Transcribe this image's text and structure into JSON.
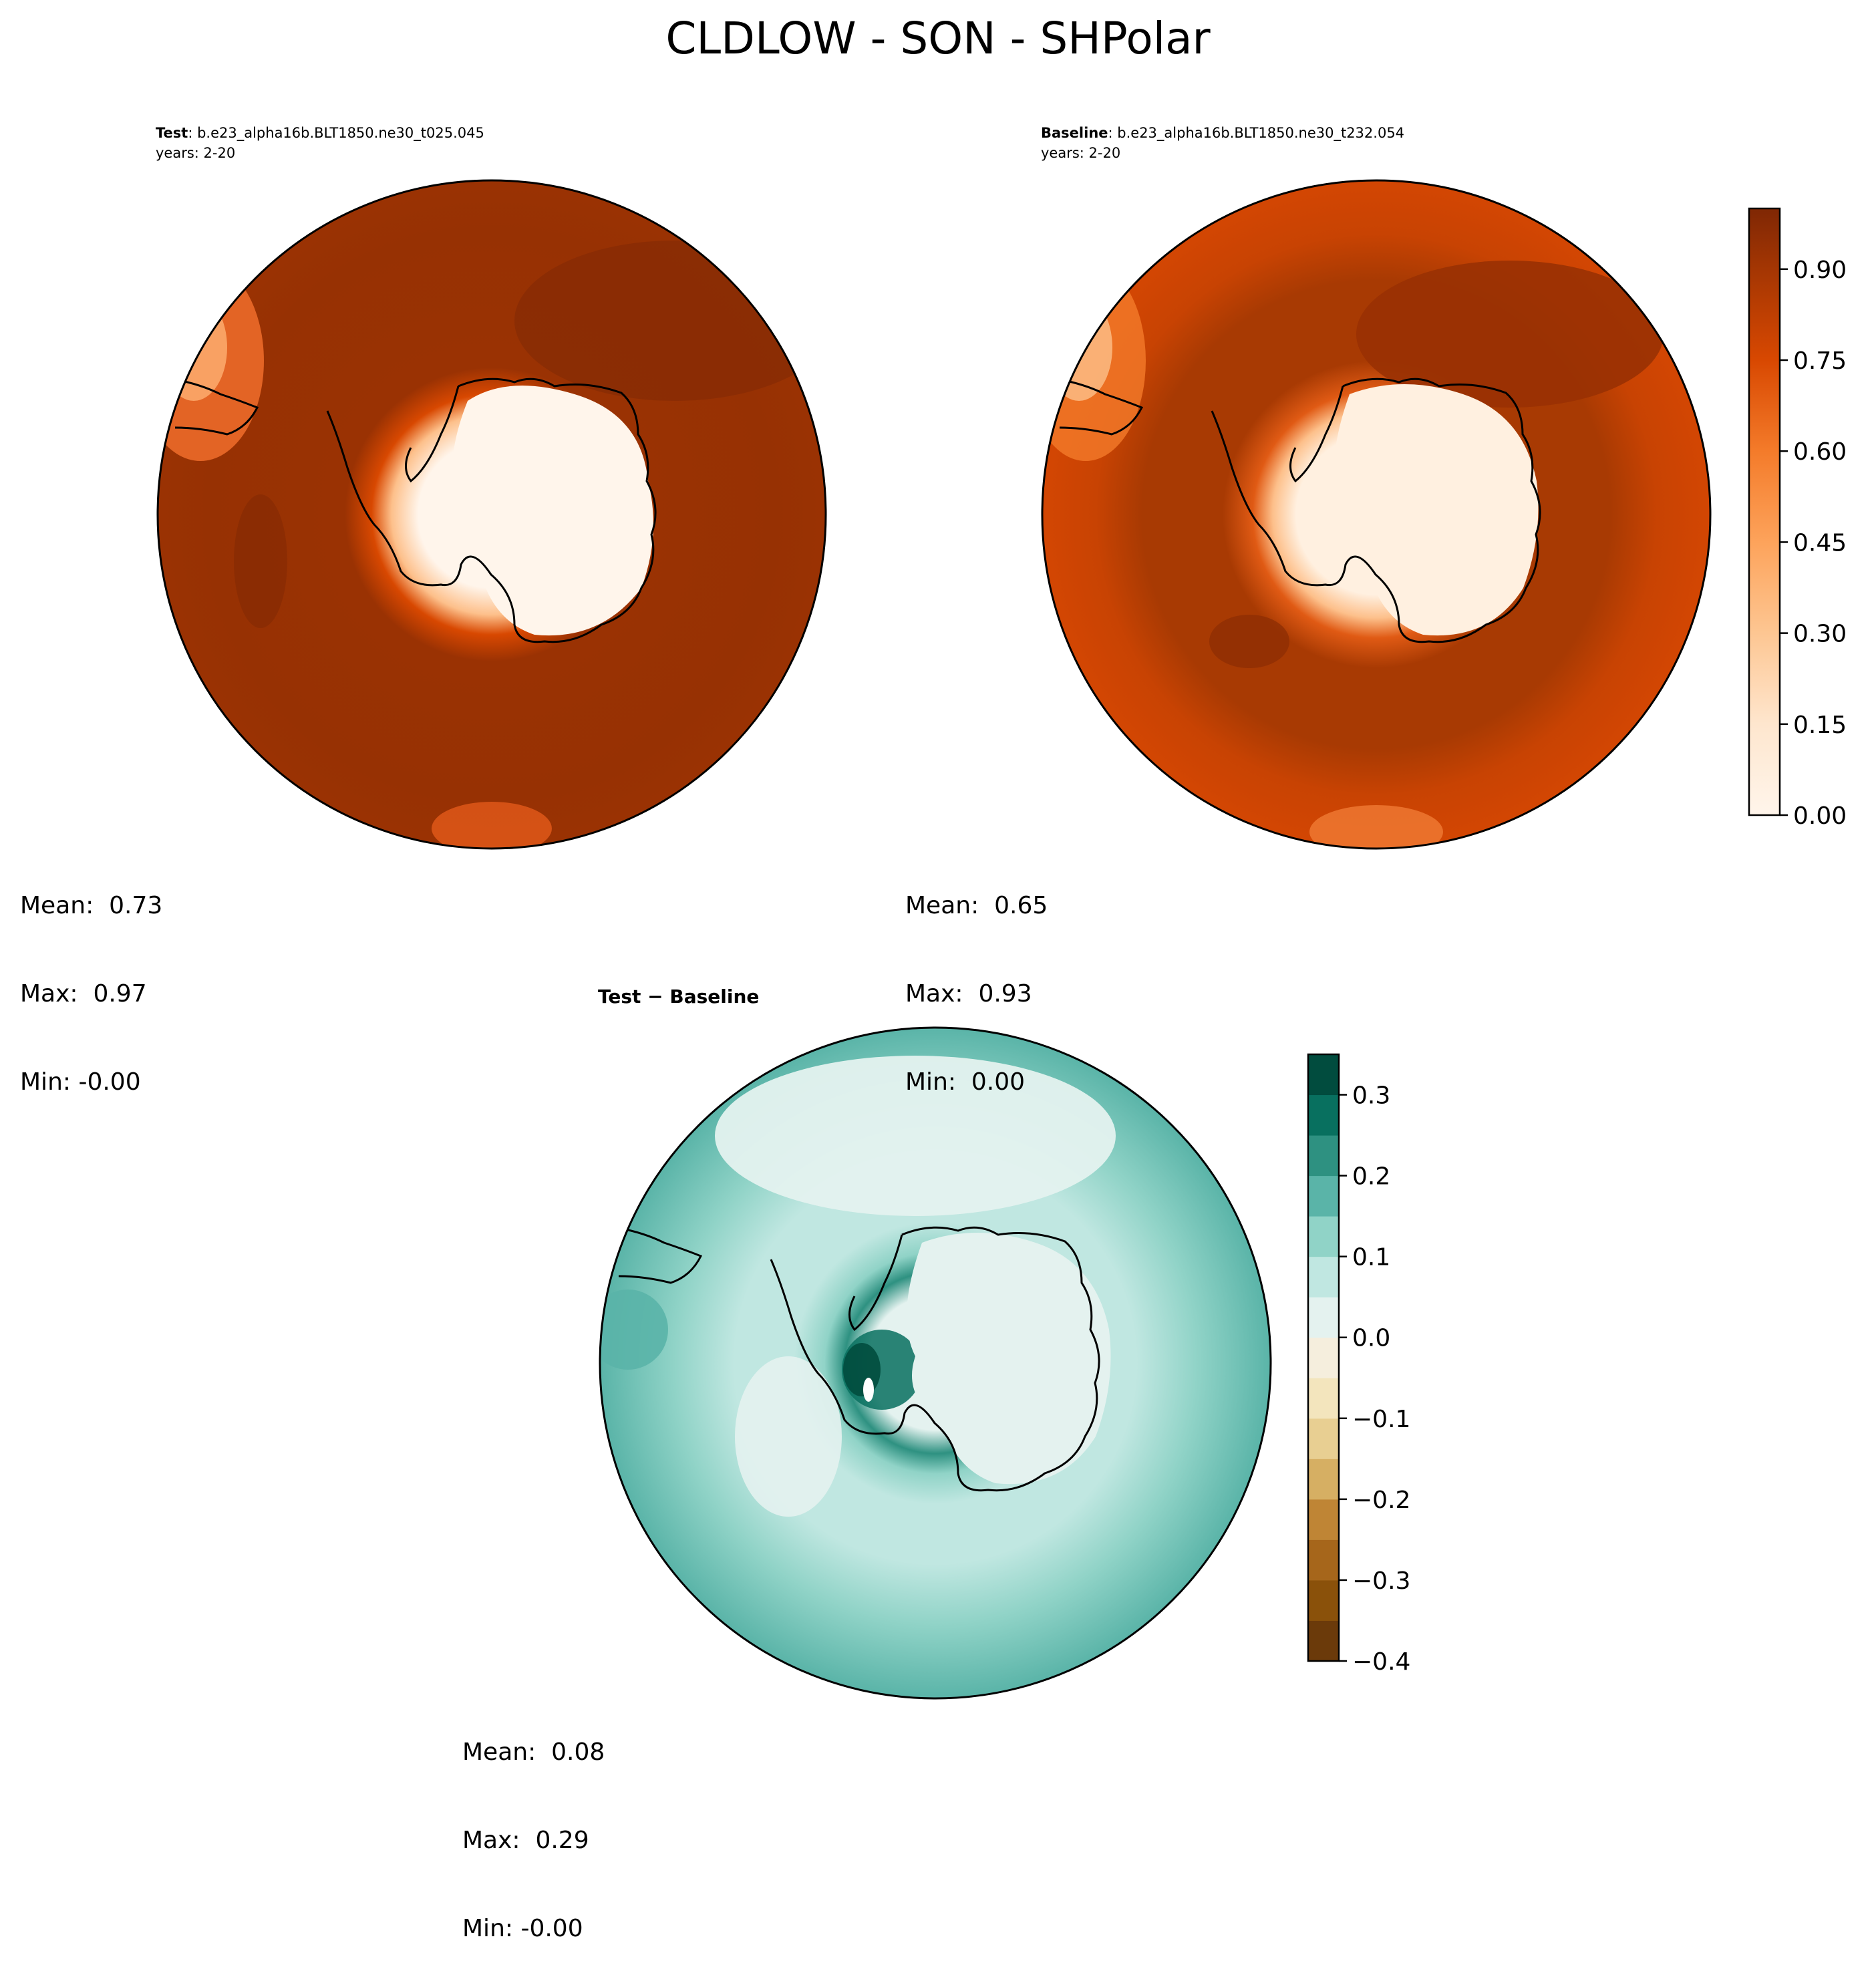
{
  "title": "CLDLOW - SON - SHPolar",
  "panels": [
    {
      "id": "test",
      "label_bold": "Test",
      "label_rest": ": b.e23_alpha16b.BLT1850.ne30_t025.045",
      "years": "years: 2-20",
      "stats": {
        "mean": "Mean:  0.73",
        "max": "Max:  0.97",
        "min": "Min: -0.00"
      }
    },
    {
      "id": "baseline",
      "label_bold": "Baseline",
      "label_rest": ": b.e23_alpha16b.BLT1850.ne30_t232.054",
      "years": "years: 2-20",
      "stats": {
        "mean": "Mean:  0.65",
        "max": "Max:  0.93",
        "min": "Min:  0.00"
      }
    },
    {
      "id": "diff",
      "label_bold": "Test − Baseline",
      "label_rest": "",
      "years": "",
      "stats": {
        "mean": "Mean:  0.08",
        "max": "Max:  0.29",
        "min": "Min: -0.00"
      }
    }
  ],
  "chart_data": [
    {
      "type": "heatmap",
      "projection": "south-polar-stereographic",
      "variable": "CLDLOW",
      "panel": "test",
      "colormap": "Oranges",
      "colorbar": {
        "min": 0.0,
        "max": 1.0,
        "ticks": [
          0.0,
          0.15,
          0.3,
          0.45,
          0.6,
          0.75,
          0.9
        ],
        "tick_labels": [
          "0.00",
          "0.15",
          "0.30",
          "0.45",
          "0.60",
          "0.75",
          "0.90"
        ],
        "levels": 20,
        "colors": [
          "#fff5eb",
          "#feead5",
          "#fde0c1",
          "#fdd2a5",
          "#fdc08b",
          "#fdab6f",
          "#fd9656",
          "#f88241",
          "#f06d2b",
          "#e45a1a",
          "#d84801",
          "#c13f03",
          "#a93703",
          "#9a3203",
          "#8f2e04",
          "#802a06",
          "#7f2704",
          "#7f2704",
          "#7f2704",
          "#7f2704"
        ]
      },
      "features": [
        {
          "region": "Southern Ocean",
          "approx_value": 0.9
        },
        {
          "region": "Antarctic interior",
          "approx_value": 0.0
        },
        {
          "region": "Antarctic coast",
          "approx_value": 0.6
        },
        {
          "region": "Northern edge near South America",
          "approx_value": 0.6
        }
      ]
    },
    {
      "type": "heatmap",
      "projection": "south-polar-stereographic",
      "variable": "CLDLOW",
      "panel": "baseline",
      "colormap": "Oranges",
      "features": [
        {
          "region": "Southern Ocean",
          "approx_value": 0.85
        },
        {
          "region": "Antarctic interior",
          "approx_value": 0.02
        },
        {
          "region": "Outer ring (mid-latitudes)",
          "approx_value": 0.75
        }
      ]
    },
    {
      "type": "heatmap",
      "projection": "south-polar-stereographic",
      "variable": "CLDLOW difference",
      "panel": "diff",
      "colormap": "BrBG",
      "colorbar": {
        "min": -0.4,
        "max": 0.35,
        "ticks": [
          -0.4,
          -0.3,
          -0.2,
          -0.1,
          0.0,
          0.1,
          0.2,
          0.3
        ],
        "tick_labels": [
          "−0.4",
          "−0.3",
          "−0.2",
          "−0.1",
          "0.0",
          "0.1",
          "0.2",
          "0.3"
        ],
        "levels": [
          -0.4,
          -0.35,
          -0.3,
          -0.25,
          -0.2,
          -0.15,
          -0.1,
          -0.05,
          0.0,
          0.05,
          0.1,
          0.15,
          0.2,
          0.25,
          0.3,
          0.35
        ],
        "colors": [
          "#6b3a0a",
          "#8a510a",
          "#a6661b",
          "#bf8535",
          "#d6af63",
          "#e8cf92",
          "#f3e5bd",
          "#f5eedd",
          "#e4f2ef",
          "#c0e7e1",
          "#90d3c7",
          "#5ab4a8",
          "#2e9181",
          "#08705f",
          "#014c3e"
        ]
      },
      "features": [
        {
          "region": "Antarctic interior",
          "approx_value": 0.0
        },
        {
          "region": "Antarctic coast / West Antarctica",
          "approx_value": 0.25
        },
        {
          "region": "Southern Ocean ring",
          "approx_value": 0.1
        },
        {
          "region": "Mid-latitude outer ring",
          "approx_value": 0.15
        }
      ]
    }
  ]
}
